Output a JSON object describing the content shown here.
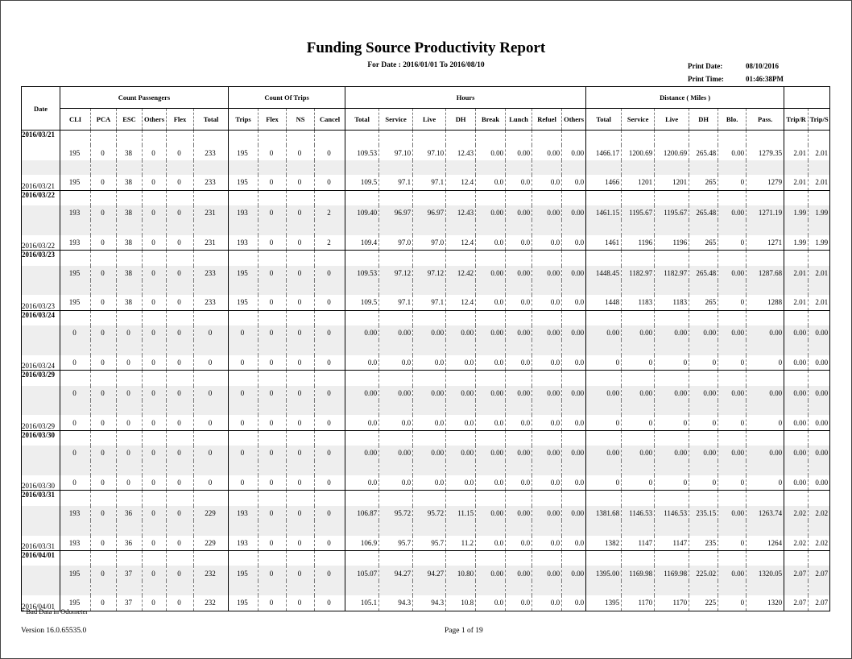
{
  "header": {
    "title": "Funding Source Productivity Report",
    "subtitle": "For Date : 2016/01/01 To 2016/08/10",
    "print_date_label": "Print Date:",
    "print_date": "08/10/2016",
    "print_time_label": "Print Time:",
    "print_time": "01:46:38PM"
  },
  "table": {
    "date_header": "Date",
    "groups": [
      "Count Passengers",
      "Count Of Trips",
      "Hours",
      "Distance ( Miles )"
    ],
    "columns": [
      "CLI",
      "PCA",
      "ESC",
      "Others",
      "Flex",
      "Total",
      "Trips",
      "Flex",
      "NS",
      "Cancel",
      "Total",
      "Service",
      "Live",
      "DH",
      "Break",
      "Lunch",
      "Refuel",
      "Others",
      "Total",
      "Service",
      "Live",
      "DH",
      "Blo.",
      "Pass.",
      "Trip/R",
      "Trip/S"
    ],
    "blocks": [
      {
        "date": "2016/03/21",
        "detail": [
          "195",
          "0",
          "38",
          "0",
          "0",
          "233",
          "195",
          "0",
          "0",
          "0",
          "109.53",
          "97.10",
          "97.10",
          "12.43",
          "0.00",
          "0.00",
          "0.00",
          "0.00",
          "1466.17",
          "1200.69",
          "1200.69",
          "265.48",
          "0.00",
          "1279.35",
          "2.01",
          "2.01"
        ],
        "summary": [
          "195",
          "0",
          "38",
          "0",
          "0",
          "233",
          "195",
          "0",
          "0",
          "0",
          "109.5",
          "97.1",
          "97.1",
          "12.4",
          "0.0",
          "0.0",
          "0.0",
          "0.0",
          "1466",
          "1201",
          "1201",
          "265",
          "0",
          "1279",
          "2.01",
          "2.01"
        ]
      },
      {
        "date": "2016/03/22",
        "detail": [
          "193",
          "0",
          "38",
          "0",
          "0",
          "231",
          "193",
          "0",
          "0",
          "2",
          "109.40",
          "96.97",
          "96.97",
          "12.43",
          "0.00",
          "0.00",
          "0.00",
          "0.00",
          "1461.15",
          "1195.67",
          "1195.67",
          "265.48",
          "0.00",
          "1271.19",
          "1.99",
          "1.99"
        ],
        "summary": [
          "193",
          "0",
          "38",
          "0",
          "0",
          "231",
          "193",
          "0",
          "0",
          "2",
          "109.4",
          "97.0",
          "97.0",
          "12.4",
          "0.0",
          "0.0",
          "0.0",
          "0.0",
          "1461",
          "1196",
          "1196",
          "265",
          "0",
          "1271",
          "1.99",
          "1.99"
        ]
      },
      {
        "date": "2016/03/23",
        "detail": [
          "195",
          "0",
          "38",
          "0",
          "0",
          "233",
          "195",
          "0",
          "0",
          "0",
          "109.53",
          "97.12",
          "97.12",
          "12.42",
          "0.00",
          "0.00",
          "0.00",
          "0.00",
          "1448.45",
          "1182.97",
          "1182.97",
          "265.48",
          "0.00",
          "1287.68",
          "2.01",
          "2.01"
        ],
        "summary": [
          "195",
          "0",
          "38",
          "0",
          "0",
          "233",
          "195",
          "0",
          "0",
          "0",
          "109.5",
          "97.1",
          "97.1",
          "12.4",
          "0.0",
          "0.0",
          "0.0",
          "0.0",
          "1448",
          "1183",
          "1183",
          "265",
          "0",
          "1288",
          "2.01",
          "2.01"
        ]
      },
      {
        "date": "2016/03/24",
        "detail": [
          "0",
          "0",
          "0",
          "0",
          "0",
          "0",
          "0",
          "0",
          "0",
          "0",
          "0.00",
          "0.00",
          "0.00",
          "0.00",
          "0.00",
          "0.00",
          "0.00",
          "0.00",
          "0.00",
          "0.00",
          "0.00",
          "0.00",
          "0.00",
          "0.00",
          "0.00",
          "0.00"
        ],
        "summary": [
          "0",
          "0",
          "0",
          "0",
          "0",
          "0",
          "0",
          "0",
          "0",
          "0",
          "0.0",
          "0.0",
          "0.0",
          "0.0",
          "0.0",
          "0.0",
          "0.0",
          "0.0",
          "0",
          "0",
          "0",
          "0",
          "0",
          "0",
          "0.00",
          "0.00"
        ]
      },
      {
        "date": "2016/03/29",
        "detail": [
          "0",
          "0",
          "0",
          "0",
          "0",
          "0",
          "0",
          "0",
          "0",
          "0",
          "0.00",
          "0.00",
          "0.00",
          "0.00",
          "0.00",
          "0.00",
          "0.00",
          "0.00",
          "0.00",
          "0.00",
          "0.00",
          "0.00",
          "0.00",
          "0.00",
          "0.00",
          "0.00"
        ],
        "summary": [
          "0",
          "0",
          "0",
          "0",
          "0",
          "0",
          "0",
          "0",
          "0",
          "0",
          "0.0",
          "0.0",
          "0.0",
          "0.0",
          "0.0",
          "0.0",
          "0.0",
          "0.0",
          "0",
          "0",
          "0",
          "0",
          "0",
          "0",
          "0.00",
          "0.00"
        ]
      },
      {
        "date": "2016/03/30",
        "detail": [
          "0",
          "0",
          "0",
          "0",
          "0",
          "0",
          "0",
          "0",
          "0",
          "0",
          "0.00",
          "0.00",
          "0.00",
          "0.00",
          "0.00",
          "0.00",
          "0.00",
          "0.00",
          "0.00",
          "0.00",
          "0.00",
          "0.00",
          "0.00",
          "0.00",
          "0.00",
          "0.00"
        ],
        "summary": [
          "0",
          "0",
          "0",
          "0",
          "0",
          "0",
          "0",
          "0",
          "0",
          "0",
          "0.0",
          "0.0",
          "0.0",
          "0.0",
          "0.0",
          "0.0",
          "0.0",
          "0.0",
          "0",
          "0",
          "0",
          "0",
          "0",
          "0",
          "0.00",
          "0.00"
        ]
      },
      {
        "date": "2016/03/31",
        "detail": [
          "193",
          "0",
          "36",
          "0",
          "0",
          "229",
          "193",
          "0",
          "0",
          "0",
          "106.87",
          "95.72",
          "95.72",
          "11.15",
          "0.00",
          "0.00",
          "0.00",
          "0.00",
          "1381.68",
          "1146.53",
          "1146.53",
          "235.15",
          "0.00",
          "1263.74",
          "2.02",
          "2.02"
        ],
        "summary": [
          "193",
          "0",
          "36",
          "0",
          "0",
          "229",
          "193",
          "0",
          "0",
          "0",
          "106.9",
          "95.7",
          "95.7",
          "11.2",
          "0.0",
          "0.0",
          "0.0",
          "0.0",
          "1382",
          "1147",
          "1147",
          "235",
          "0",
          "1264",
          "2.02",
          "2.02"
        ]
      },
      {
        "date": "2016/04/01",
        "detail": [
          "195",
          "0",
          "37",
          "0",
          "0",
          "232",
          "195",
          "0",
          "0",
          "0",
          "105.07",
          "94.27",
          "94.27",
          "10.80",
          "0.00",
          "0.00",
          "0.00",
          "0.00",
          "1395.00",
          "1169.98",
          "1169.98",
          "225.02",
          "0.00",
          "1320.05",
          "2.07",
          "2.07"
        ],
        "summary": [
          "195",
          "0",
          "37",
          "0",
          "0",
          "232",
          "195",
          "0",
          "0",
          "0",
          "105.1",
          "94.3",
          "94.3",
          "10.8",
          "0.0",
          "0.0",
          "0.0",
          "0.0",
          "1395",
          "1170",
          "1170",
          "225",
          "0",
          "1320",
          "2.07",
          "2.07"
        ]
      }
    ]
  },
  "footer": {
    "note": "* Bad Data in Odometer",
    "version": "Version 16.0.65535.0",
    "page": "Page 1 of 19"
  }
}
